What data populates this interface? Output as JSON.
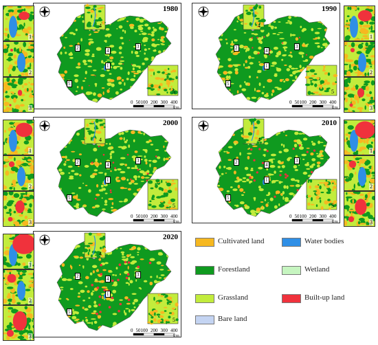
{
  "panels": [
    {
      "year": "1980",
      "side": "left"
    },
    {
      "year": "1990",
      "side": "right"
    },
    {
      "year": "2000",
      "side": "left"
    },
    {
      "year": "2010",
      "side": "right"
    },
    {
      "year": "2020",
      "side": "left"
    }
  ],
  "inset_labels": [
    "1",
    "2",
    "3",
    "4",
    "5"
  ],
  "map_markers": [
    "1",
    "2",
    "3",
    "4",
    "5"
  ],
  "scale_bar": {
    "ticks": [
      "0",
      "50100",
      "200",
      "300",
      "400"
    ],
    "unit": "km"
  },
  "legend": [
    {
      "label": "Cultivated land",
      "color": "#f6b820"
    },
    {
      "label": "Water bodies",
      "color": "#2f8fe6"
    },
    {
      "label": "Forestland",
      "color": "#0f9a1f"
    },
    {
      "label": "Wetland",
      "color": "#c6f5c0"
    },
    {
      "label": "Grassland",
      "color": "#c2ec3c"
    },
    {
      "label": "Built-up land",
      "color": "#f0323c"
    },
    {
      "label": "Bare land",
      "color": "#c4d4f2"
    }
  ],
  "colors": {
    "forest": "#0f9a1f",
    "grass": "#c2ec3c",
    "cultivated": "#f6b820",
    "water": "#2f8fe6",
    "builtup": "#f0323c",
    "bare": "#c4d4f2"
  }
}
